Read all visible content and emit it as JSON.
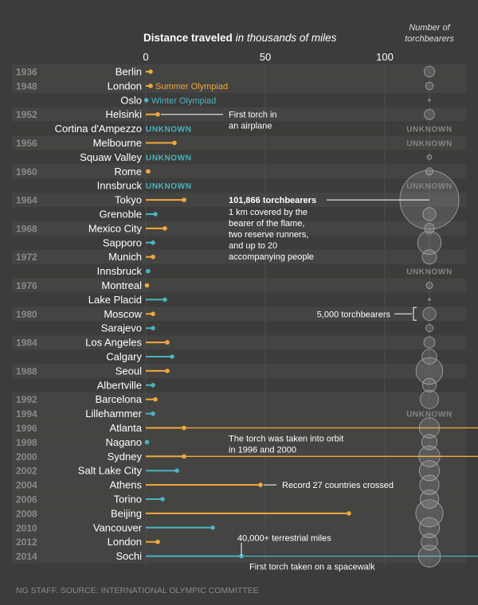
{
  "colors": {
    "summer": "#f2a93b",
    "winter": "#4bb3bf",
    "unknown": "#4bb3bf",
    "background": "#3c3c3a",
    "year_text": "#8a8a88"
  },
  "header": {
    "title_bold": "Distance traveled",
    "title_italic": " in thousands of miles",
    "right_line1": "Number of",
    "right_line2": "torchbearers"
  },
  "legend": {
    "summer": "Summer Olympiad",
    "winter": "Winter Olympiad"
  },
  "unknown_label": "UNKNOWN",
  "source": "NG STAFF. SOURCE: INTERNATIONAL OLYMPIC COMMITTEE",
  "annotations": {
    "airplane_1": "First torch in",
    "airplane_2": "an airplane",
    "tokyo_bold": "101,866 torchbearers",
    "tokyo_1": "1 km covered by the",
    "tokyo_2": "bearer of the flame,",
    "tokyo_3": "two reserve runners,",
    "tokyo_4": "and up to 20",
    "tokyo_5": "accompanying people",
    "moscow": "5,000 torchbearers",
    "orbit_1": "The torch was taken into orbit",
    "orbit_2": "in 1996 and 2000",
    "athens": "Record 27 countries crossed",
    "sochi_top": "40,000+ terrestrial miles",
    "sochi_bottom": "First torch taken on a spacewalk"
  },
  "chart_data": {
    "type": "bar",
    "title": "Distance traveled in thousands of miles",
    "xlabel": "Distance traveled in thousands of miles",
    "ylabel": "",
    "xlim": [
      0,
      130
    ],
    "xticks": [
      0,
      50,
      100
    ],
    "bubble_title": "Number of torchbearers",
    "rows": [
      {
        "year": "1936",
        "city": "Berlin",
        "season": "summer",
        "distance": 2,
        "bearers": 3300,
        "known": true
      },
      {
        "year": "1948",
        "city": "London",
        "season": "summer",
        "distance": 2,
        "bearers": 1700,
        "known": true
      },
      {
        "year": "",
        "city": "Oslo",
        "season": "winter",
        "distance": 0.2,
        "bearers": 90,
        "known": true
      },
      {
        "year": "1952",
        "city": "Helsinki",
        "season": "summer",
        "distance": 5,
        "bearers": 3000,
        "known": true
      },
      {
        "year": "",
        "city": "Cortina d'Ampezzo",
        "season": "winter",
        "distance": null,
        "bearers": null,
        "known": false
      },
      {
        "year": "1956",
        "city": "Melbourne",
        "season": "summer",
        "distance": 12,
        "bearers": null,
        "known": true
      },
      {
        "year": "",
        "city": "Squaw Valley",
        "season": "winter",
        "distance": null,
        "bearers": 650,
        "known": false
      },
      {
        "year": "1960",
        "city": "Rome",
        "season": "summer",
        "distance": 1,
        "bearers": 1500,
        "known": true
      },
      {
        "year": "",
        "city": "Innsbruck",
        "season": "winter",
        "distance": null,
        "bearers": null,
        "known": false
      },
      {
        "year": "1964",
        "city": "Tokyo",
        "season": "summer",
        "distance": 16,
        "bearers": 101866,
        "known": true
      },
      {
        "year": "",
        "city": "Grenoble",
        "season": "winter",
        "distance": 4,
        "bearers": 5000,
        "known": true
      },
      {
        "year": "1968",
        "city": "Mexico City",
        "season": "summer",
        "distance": 8,
        "bearers": 2900,
        "known": true
      },
      {
        "year": "",
        "city": "Sapporo",
        "season": "winter",
        "distance": 3,
        "bearers": 16300,
        "known": true
      },
      {
        "year": "1972",
        "city": "Munich",
        "season": "summer",
        "distance": 3,
        "bearers": 6000,
        "known": true
      },
      {
        "year": "",
        "city": "Innsbruck",
        "season": "winter",
        "distance": 1,
        "bearers": null,
        "known": true
      },
      {
        "year": "1976",
        "city": "Montreal",
        "season": "summer",
        "distance": 0.5,
        "bearers": 1200,
        "known": true
      },
      {
        "year": "",
        "city": "Lake Placid",
        "season": "winter",
        "distance": 8,
        "bearers": 50,
        "known": true
      },
      {
        "year": "1980",
        "city": "Moscow",
        "season": "summer",
        "distance": 3,
        "bearers": 5000,
        "known": true
      },
      {
        "year": "",
        "city": "Sarajevo",
        "season": "winter",
        "distance": 3,
        "bearers": 1600,
        "known": true
      },
      {
        "year": "1984",
        "city": "Los Angeles",
        "season": "summer",
        "distance": 9,
        "bearers": 3600,
        "known": true
      },
      {
        "year": "",
        "city": "Calgary",
        "season": "winter",
        "distance": 11,
        "bearers": 6500,
        "known": true
      },
      {
        "year": "1988",
        "city": "Seoul",
        "season": "summer",
        "distance": 9,
        "bearers": 21000,
        "known": true
      },
      {
        "year": "",
        "city": "Albertville",
        "season": "winter",
        "distance": 3,
        "bearers": 5500,
        "known": true
      },
      {
        "year": "1992",
        "city": "Barcelona",
        "season": "summer",
        "distance": 4,
        "bearers": 10000,
        "known": true
      },
      {
        "year": "1994",
        "city": "Lillehammer",
        "season": "winter",
        "distance": 3,
        "bearers": null,
        "known": true
      },
      {
        "year": "1996",
        "city": "Atlanta",
        "season": "summer",
        "distance": 16,
        "bearers": 12000,
        "known": true
      },
      {
        "year": "1998",
        "city": "Nagano",
        "season": "winter",
        "distance": 0.5,
        "bearers": 7000,
        "known": true
      },
      {
        "year": "2000",
        "city": "Sydney",
        "season": "summer",
        "distance": 16,
        "bearers": 13000,
        "known": true
      },
      {
        "year": "2002",
        "city": "Salt Lake City",
        "season": "winter",
        "distance": 13,
        "bearers": 12000,
        "known": true
      },
      {
        "year": "2004",
        "city": "Athens",
        "season": "summer",
        "distance": 48,
        "bearers": 11000,
        "known": true
      },
      {
        "year": "2006",
        "city": "Torino",
        "season": "winter",
        "distance": 7,
        "bearers": 10000,
        "known": true
      },
      {
        "year": "2008",
        "city": "Beijing",
        "season": "summer",
        "distance": 85,
        "bearers": 21800,
        "known": true
      },
      {
        "year": "2010",
        "city": "Vancouver",
        "season": "winter",
        "distance": 28,
        "bearers": 12000,
        "known": true
      },
      {
        "year": "2012",
        "city": "London",
        "season": "summer",
        "distance": 5,
        "bearers": 8000,
        "known": true
      },
      {
        "year": "2014",
        "city": "Sochi",
        "season": "winter",
        "distance": 40,
        "bearers": 14000,
        "known": true
      }
    ]
  }
}
